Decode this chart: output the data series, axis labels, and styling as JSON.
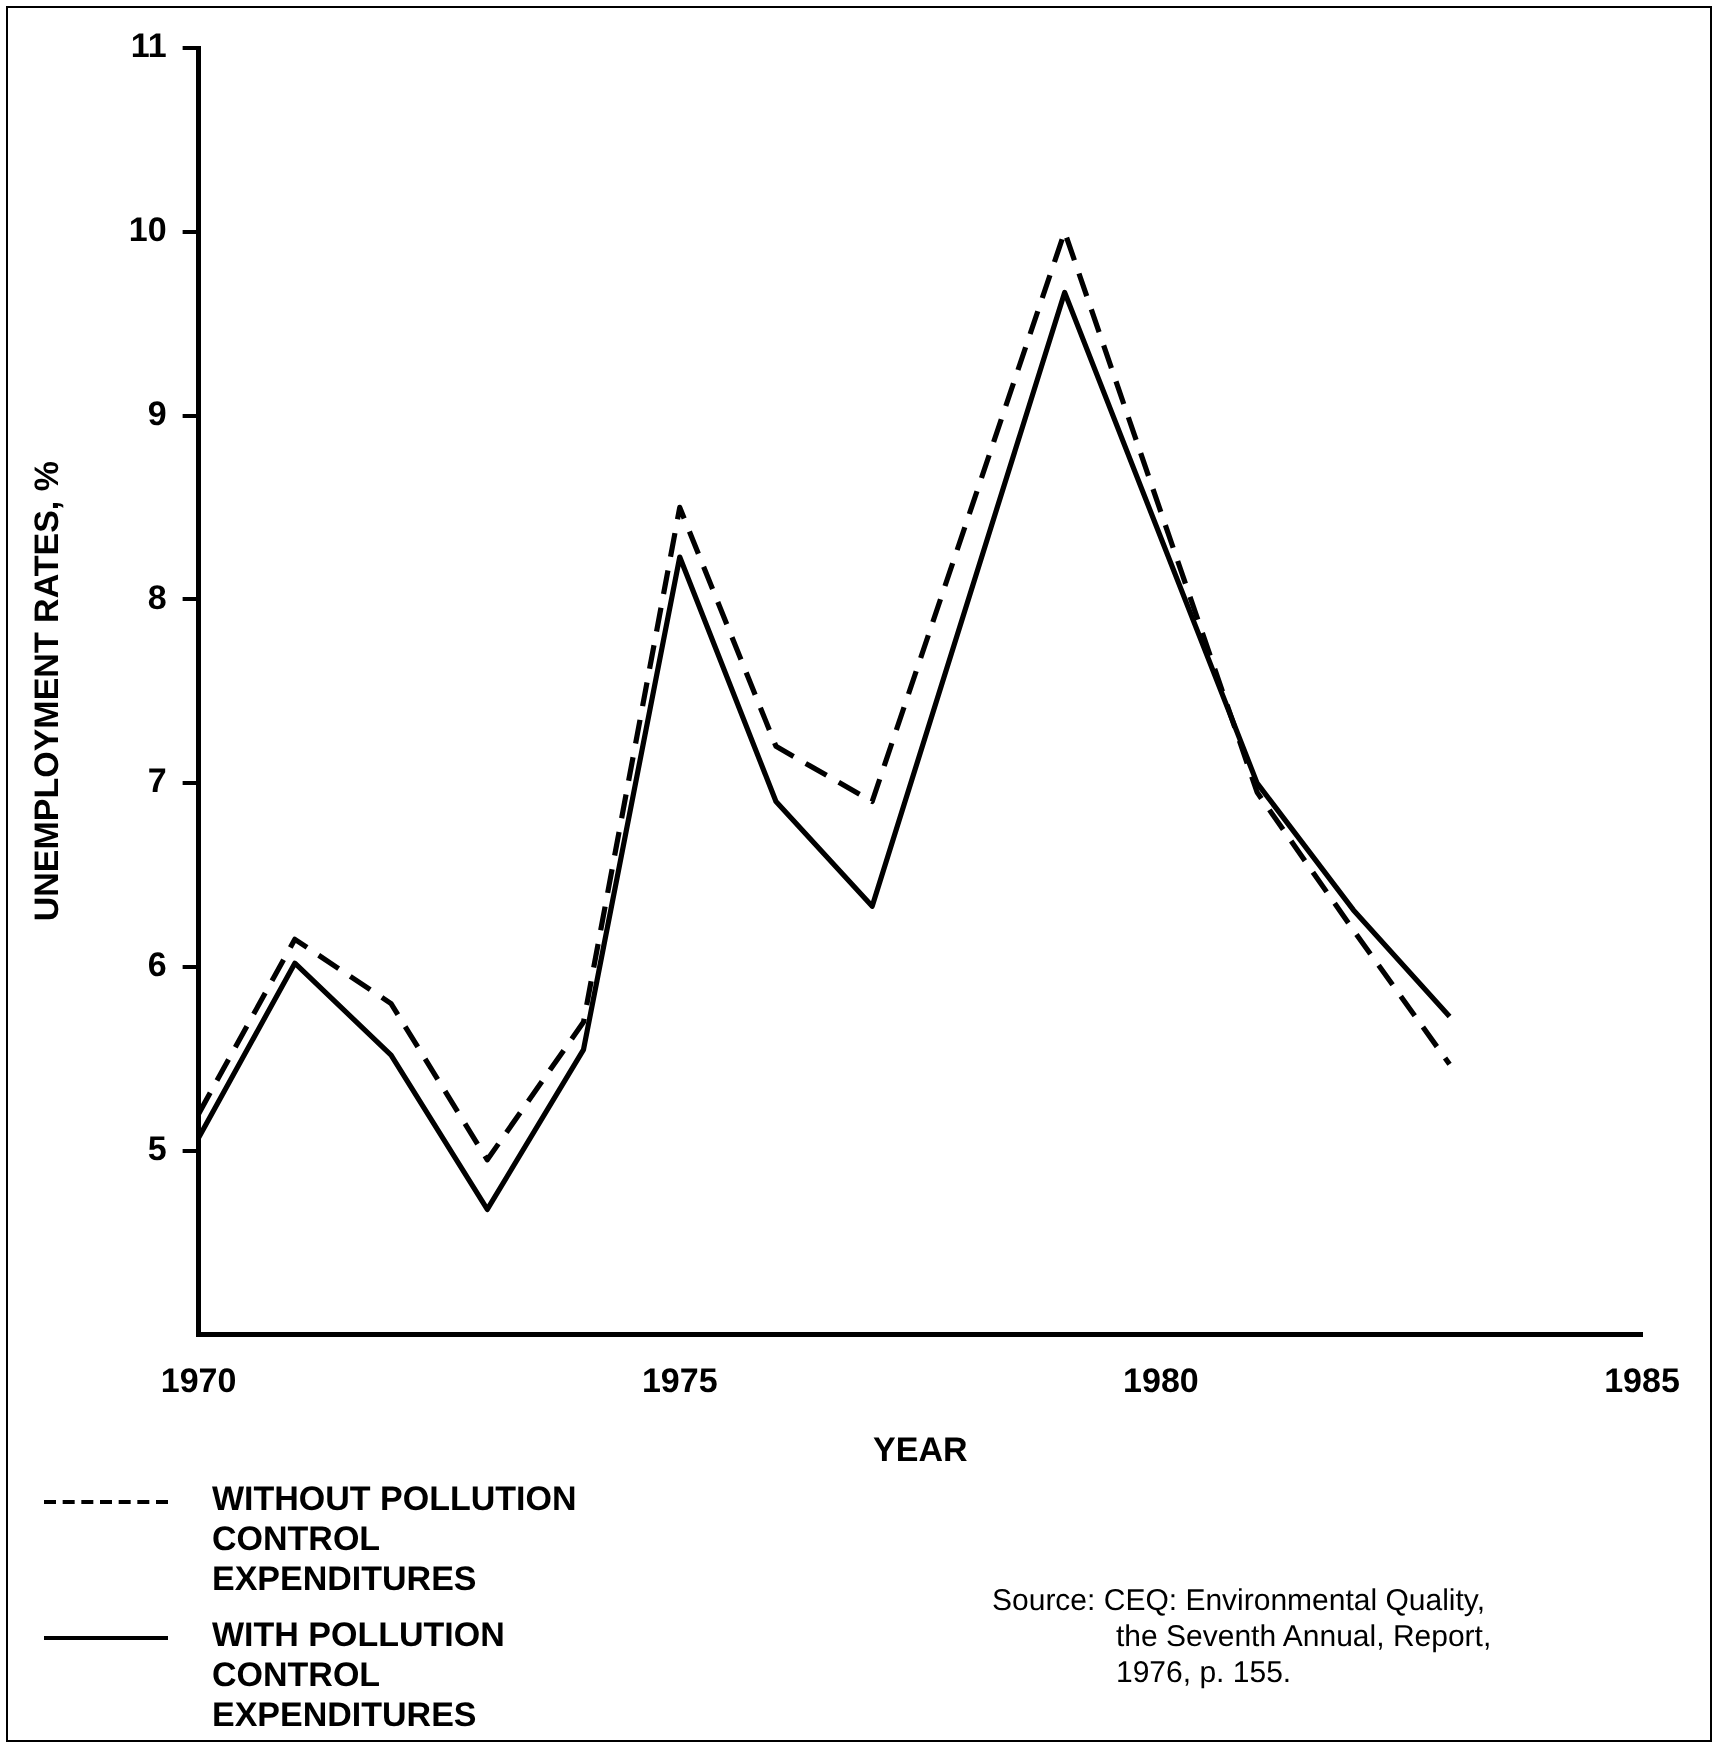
{
  "chart_data": {
    "type": "line",
    "xlabel": "YEAR",
    "ylabel": "UNEMPLOYMENT RATES, %",
    "xlim": [
      1970,
      1985
    ],
    "xticks": [
      1970,
      1975,
      1980,
      1985
    ],
    "ylim": [
      4,
      11
    ],
    "yticks": [
      5,
      6,
      7,
      8,
      9,
      10,
      11
    ],
    "grid": false,
    "legend": "bottom left",
    "marker": "none",
    "series": [
      {
        "name": "WITHOUT POLLUTION CONTROL EXPENDITURES",
        "color": "#000000",
        "line_style": "dashed",
        "x": [
          1970,
          1971,
          1972,
          1973,
          1974,
          1975,
          1976,
          1977,
          1979,
          1981,
          1982,
          1983
        ],
        "values": [
          5.2,
          6.15,
          5.8,
          4.95,
          5.7,
          8.5,
          7.2,
          6.9,
          10.0,
          6.95,
          6.2,
          5.47
        ]
      },
      {
        "name": "WITH POLLUTION CONTROL EXPENDITURES",
        "color": "#000000",
        "line_style": "solid",
        "x": [
          1970,
          1971,
          1972,
          1973,
          1974,
          1975,
          1976,
          1977,
          1979,
          1981,
          1982,
          1983
        ],
        "values": [
          5.07,
          6.02,
          5.52,
          4.68,
          5.55,
          8.23,
          6.9,
          6.33,
          9.67,
          7.0,
          6.31,
          5.73
        ]
      }
    ],
    "annotations": [
      "Source: CEQ:  Environmental Quality, the Seventh Annual, Report, 1976, p. 155."
    ]
  }
}
